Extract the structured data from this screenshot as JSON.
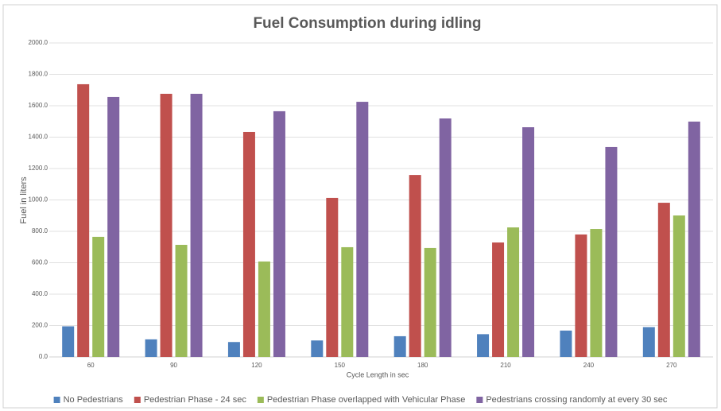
{
  "chart_data": {
    "type": "bar",
    "title": "Fuel Consumption during idling",
    "x_label": "Cycle Length in sec",
    "y_label": "Fuel in liters",
    "categories": [
      "60",
      "90",
      "120",
      "150",
      "180",
      "210",
      "240",
      "270"
    ],
    "series": [
      {
        "name": "No Pedestrians",
        "color": "#4f81bd",
        "values": [
          195,
          112,
          95,
          105,
          132,
          145,
          168,
          190
        ]
      },
      {
        "name": "Pedestrian Phase - 24 sec",
        "color": "#c0504d",
        "values": [
          1737,
          1676,
          1433,
          1013,
          1159,
          729,
          780,
          982
        ]
      },
      {
        "name": "Pedestrian Phase overlapped with Vehicular Phase",
        "color": "#9bbb59",
        "values": [
          765,
          714,
          608,
          699,
          694,
          825,
          815,
          901
        ]
      },
      {
        "name": "Pedestrians crossing randomly at every 30 sec",
        "color": "#8064a2",
        "values": [
          1656,
          1676,
          1565,
          1625,
          1519,
          1463,
          1337,
          1499
        ]
      }
    ],
    "ylim": [
      0,
      2000
    ],
    "yticks": [
      {
        "value": 0,
        "label": "0.0"
      },
      {
        "value": 200,
        "label": "200.0"
      },
      {
        "value": 400,
        "label": "400.0"
      },
      {
        "value": 600,
        "label": "600.0"
      },
      {
        "value": 800,
        "label": "800.0"
      },
      {
        "value": 1000,
        "label": "1000.0"
      },
      {
        "value": 1200,
        "label": "1200.0"
      },
      {
        "value": 1400,
        "label": "1400.0"
      },
      {
        "value": 1600,
        "label": "1600.0"
      },
      {
        "value": 1800,
        "label": "1800.0"
      },
      {
        "value": 2000,
        "label": "2000.0"
      }
    ],
    "grid": true,
    "legend": "bottom"
  }
}
